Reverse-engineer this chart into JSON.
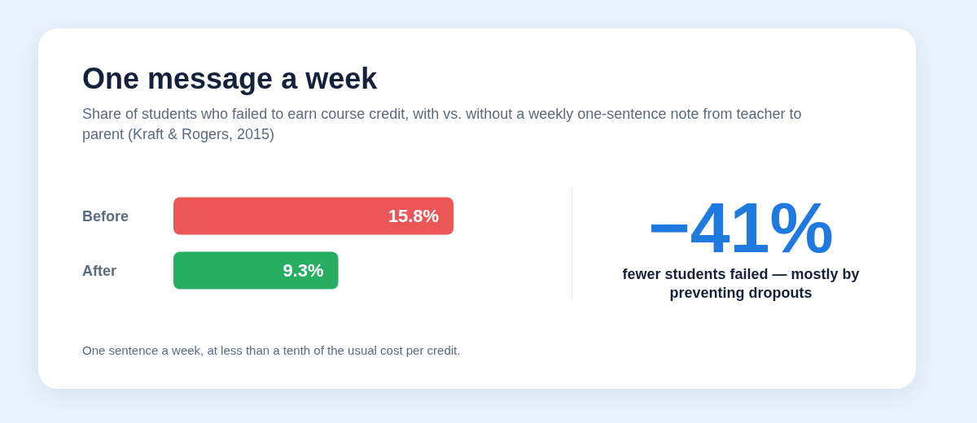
{
  "chart_data": {
    "type": "bar",
    "orientation": "horizontal",
    "title": "One message a week",
    "subtitle": "Share of students who failed to earn course credit, with vs. without a weekly one-sentence note from teacher to parent (Kraft & Rogers, 2015)",
    "categories": [
      "Before",
      "After"
    ],
    "values": [
      15.8,
      9.3
    ],
    "value_labels": [
      "15.8%",
      "9.3%"
    ],
    "colors": [
      "#eb5757",
      "#27ae60"
    ],
    "annotations": [
      "−41%",
      "fewer students failed — mostly by preventing dropouts",
      "One sentence a week, at less than a tenth of the usual cost per credit."
    ]
  }
}
